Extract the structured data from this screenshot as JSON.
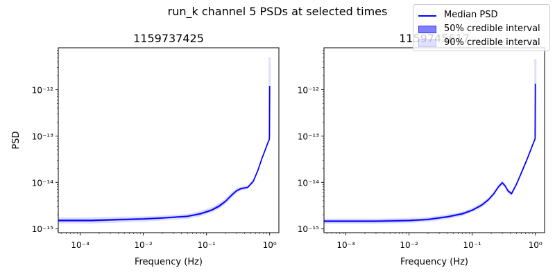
{
  "figure_title": "run_k channel 5 PSDs at selected times",
  "colors": {
    "median": "#0000ff",
    "ci50": "#0000ff",
    "ci90": "#0000ff"
  },
  "legend": {
    "placement": "top-right",
    "items": [
      {
        "label": "Median PSD",
        "style": "line"
      },
      {
        "label": "50% credible interval",
        "style": "ci50"
      },
      {
        "label": "90% credible interval",
        "style": "ci90"
      }
    ]
  },
  "chart_data": [
    {
      "type": "line",
      "title": "1159737425",
      "xlabel": "Frequency (Hz)",
      "ylabel": "PSD",
      "xscale": "log",
      "yscale": "log",
      "xlim": [
        0.00045,
        1.4
      ],
      "ylim": [
        8.2e-16,
        8e-12
      ],
      "xticks": [
        0.001,
        0.01,
        0.1,
        1
      ],
      "xtick_labels": [
        "10⁻³",
        "10⁻²",
        "10⁻¹",
        "10⁰"
      ],
      "yticks": [
        1e-15,
        1e-14,
        1e-13,
        1e-12
      ],
      "ytick_labels": [
        "10⁻¹⁵",
        "10⁻¹⁴",
        "10⁻¹³",
        "10⁻¹²"
      ],
      "series": [
        {
          "name": "Median PSD",
          "x": [
            0.00045,
            0.0015,
            0.003,
            0.01,
            0.02,
            0.05,
            0.08,
            0.12,
            0.16,
            0.2,
            0.25,
            0.3,
            0.35,
            0.45,
            0.55,
            0.65,
            0.75,
            0.85,
            0.95,
            0.99
          ],
          "y": [
            1.5e-15,
            1.5e-15,
            1.55e-15,
            1.62e-15,
            1.7e-15,
            1.85e-15,
            2.1e-15,
            2.5e-15,
            3.1e-15,
            3.9e-15,
            5.3e-15,
            6.6e-15,
            7.3e-15,
            7.8e-15,
            1.05e-14,
            1.8e-14,
            3.2e-14,
            5e-14,
            7.5e-14,
            8.5e-14
          ],
          "spike": {
            "x": 1.0,
            "y_from": 8.5e-14,
            "y_to": 1.2e-12
          }
        },
        {
          "name": "50% credible interval",
          "y_lower": [
            1.42e-15,
            1.42e-15,
            1.47e-15,
            1.55e-15,
            1.63e-15,
            1.77e-15,
            2e-15,
            2.4e-15,
            2.9e-15,
            3.7e-15,
            5e-15,
            6.3e-15,
            7e-15,
            7.5e-15,
            1e-14,
            1.72e-14,
            3.05e-14,
            4.8e-14,
            7.1e-14,
            8.1e-14
          ],
          "y_upper": [
            1.6e-15,
            1.6e-15,
            1.63e-15,
            1.7e-15,
            1.78e-15,
            1.93e-15,
            2.2e-15,
            2.65e-15,
            3.3e-15,
            4.1e-15,
            5.6e-15,
            6.9e-15,
            7.6e-15,
            8.1e-15,
            1.1e-14,
            1.88e-14,
            3.35e-14,
            5.2e-14,
            7.9e-14,
            8.9e-14
          ]
        },
        {
          "name": "90% credible interval",
          "y_lower": [
            1.3e-15,
            1.3e-15,
            1.33e-15,
            1.42e-15,
            1.5e-15,
            1.62e-15,
            1.85e-15,
            2.2e-15,
            2.7e-15,
            3.4e-15,
            4.6e-15,
            5.9e-15,
            6.6e-15,
            7.1e-15,
            9.5e-15,
            1.62e-14,
            2.9e-14,
            4.6e-14,
            6.8e-14,
            7.8e-14
          ],
          "y_upper": [
            1.75e-15,
            1.75e-15,
            1.8e-15,
            1.85e-15,
            1.92e-15,
            2.08e-15,
            2.4e-15,
            2.9e-15,
            3.6e-15,
            4.5e-15,
            6.1e-15,
            7.4e-15,
            8.1e-15,
            8.7e-15,
            1.17e-14,
            1.98e-14,
            3.5e-14,
            5.5e-14,
            8.2e-14,
            9.3e-14
          ],
          "spike": {
            "x": 1.0,
            "y_from": 9.3e-14,
            "y_to": 5e-12
          }
        }
      ]
    },
    {
      "type": "line",
      "title": "1159745617",
      "xlabel": "Frequency (Hz)",
      "ylabel": "",
      "xscale": "log",
      "yscale": "log",
      "xlim": [
        0.00045,
        1.4
      ],
      "ylim": [
        8.2e-16,
        8e-12
      ],
      "xticks": [
        0.001,
        0.01,
        0.1,
        1
      ],
      "xtick_labels": [
        "10⁻³",
        "10⁻²",
        "10⁻¹",
        "10⁰"
      ],
      "yticks": [
        1e-15,
        1e-14,
        1e-13,
        1e-12
      ],
      "ytick_labels": [
        "10⁻¹⁵",
        "10⁻¹⁴",
        "10⁻¹³",
        "10⁻¹²"
      ],
      "series": [
        {
          "name": "Median PSD",
          "x": [
            0.00045,
            0.003,
            0.01,
            0.02,
            0.04,
            0.07,
            0.1,
            0.14,
            0.18,
            0.22,
            0.26,
            0.3,
            0.33,
            0.37,
            0.42,
            0.5,
            0.6,
            0.75,
            0.9,
            0.99
          ],
          "y": [
            1.45e-15,
            1.45e-15,
            1.5e-15,
            1.58e-15,
            1.8e-15,
            2.1e-15,
            2.5e-15,
            3.2e-15,
            4.2e-15,
            5.7e-15,
            8e-15,
            9.8e-15,
            8.5e-15,
            6.5e-15,
            5.7e-15,
            9e-15,
            1.6e-14,
            3.3e-14,
            6.3e-14,
            8.7e-14
          ],
          "spike": {
            "x": 1.0,
            "y_from": 8.7e-14,
            "y_to": 1.35e-12
          }
        },
        {
          "name": "50% credible interval",
          "y_lower": [
            1.38e-15,
            1.38e-15,
            1.43e-15,
            1.51e-15,
            1.72e-15,
            2e-15,
            2.4e-15,
            3.05e-15,
            4e-15,
            5.45e-15,
            7.6e-15,
            9.3e-15,
            8.1e-15,
            6.2e-15,
            5.4e-15,
            8.6e-15,
            1.53e-14,
            3.15e-14,
            6e-14,
            8.3e-14
          ],
          "y_upper": [
            1.53e-15,
            1.53e-15,
            1.58e-15,
            1.66e-15,
            1.89e-15,
            2.2e-15,
            2.62e-15,
            3.36e-15,
            4.4e-15,
            6e-15,
            8.4e-15,
            1.03e-14,
            8.9e-15,
            6.8e-15,
            6e-15,
            9.4e-15,
            1.68e-14,
            3.45e-14,
            6.6e-14,
            9.1e-14
          ]
        },
        {
          "name": "90% credible interval",
          "y_lower": [
            1.28e-15,
            1.28e-15,
            1.32e-15,
            1.4e-15,
            1.6e-15,
            1.88e-15,
            2.25e-15,
            2.85e-15,
            3.75e-15,
            5.1e-15,
            7.1e-15,
            8.7e-15,
            7.6e-15,
            5.8e-15,
            5.05e-15,
            8.1e-15,
            1.45e-14,
            2.95e-14,
            5.7e-14,
            7.9e-14
          ],
          "y_upper": [
            1.65e-15,
            1.65e-15,
            1.7e-15,
            1.78e-15,
            2.02e-15,
            2.35e-15,
            2.8e-15,
            3.6e-15,
            4.7e-15,
            6.4e-15,
            9e-15,
            1.1e-14,
            9.5e-15,
            7.3e-15,
            6.4e-15,
            1e-14,
            1.78e-14,
            3.7e-14,
            7e-14,
            9.6e-14
          ],
          "spike": {
            "x": 1.0,
            "y_from": 9.6e-14,
            "y_to": 4.6e-12
          }
        }
      ]
    }
  ]
}
